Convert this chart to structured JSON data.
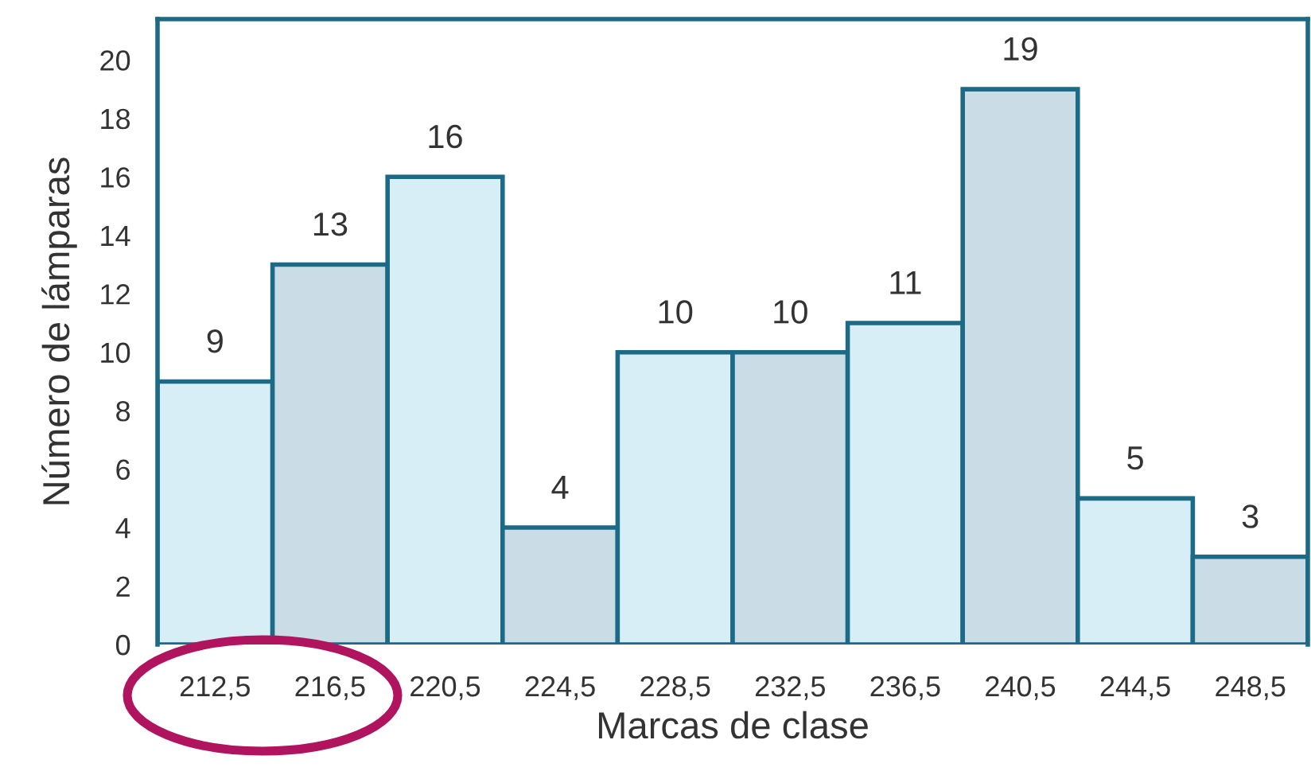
{
  "chart_data": {
    "type": "bar",
    "xlabel": "Marcas de clase",
    "ylabel": "Número de lámparas",
    "categories": [
      "212,5",
      "216,5",
      "220,5",
      "224,5",
      "228,5",
      "232,5",
      "236,5",
      "240,5",
      "244,5",
      "248,5"
    ],
    "values": [
      9,
      13,
      16,
      4,
      10,
      10,
      11,
      19,
      5,
      3
    ],
    "colors": [
      "#d8eef7",
      "#cadde7",
      "#d8eef7",
      "#cadde7",
      "#d8eef7",
      "#cadde7",
      "#d8eef7",
      "#cadde7",
      "#d8eef7",
      "#cadde7"
    ],
    "ylim": [
      0,
      21.4
    ],
    "yticks": [
      0,
      2,
      4,
      6,
      8,
      10,
      12,
      14,
      16,
      18,
      20
    ],
    "data_labels": true,
    "grid": false
  }
}
